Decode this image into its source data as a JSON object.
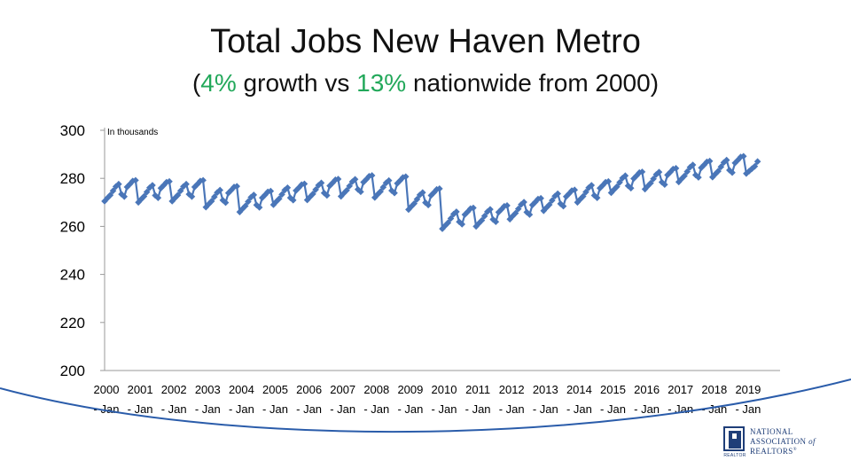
{
  "slide": {
    "title": "Total Jobs New Haven Metro",
    "subtitle_open": "(",
    "subtitle_pct1": "4%",
    "subtitle_mid": "  growth vs ",
    "subtitle_pct2": "13%",
    "subtitle_end": " nationwide from 2000)",
    "accent_color": "#22a85a",
    "swoosh_color": "#2a5caa"
  },
  "logo": {
    "line1": "NATIONAL",
    "line2a": "ASSOCIATION ",
    "line2b": "of",
    "line3": "REALTORS",
    "reg": "®",
    "mark_sub": "REALTOR"
  },
  "chart_data": {
    "type": "line",
    "note": "In thousands",
    "series_color": "#4a76b8",
    "grid": false,
    "ylim": [
      200,
      300
    ],
    "yticks": [
      200,
      220,
      240,
      260,
      280,
      300
    ],
    "x_start": "2000-01",
    "frequency": "monthly",
    "xtick_years": [
      "2000",
      "2001",
      "2002",
      "2003",
      "2004",
      "2005",
      "2006",
      "2007",
      "2008",
      "2009",
      "2010",
      "2011",
      "2012",
      "2013",
      "2014",
      "2015",
      "2016",
      "2017",
      "2018",
      "2019"
    ],
    "xtick_suffix": "- Jan",
    "annual_pattern": [
      -5.5,
      -4.2,
      -3.0,
      -1.2,
      0.6,
      1.6,
      -2.6,
      -3.6,
      0.4,
      1.6,
      2.9,
      3.2
    ],
    "annual_levels": [
      276,
      275.5,
      276,
      273.5,
      271.5,
      274.5,
      276.5,
      278,
      277.5,
      272.5,
      264.5,
      265.5,
      268.5,
      272,
      275.5,
      279.5,
      281,
      284,
      286,
      288
    ],
    "values_2019": [
      282,
      283,
      284,
      285,
      287
    ]
  }
}
